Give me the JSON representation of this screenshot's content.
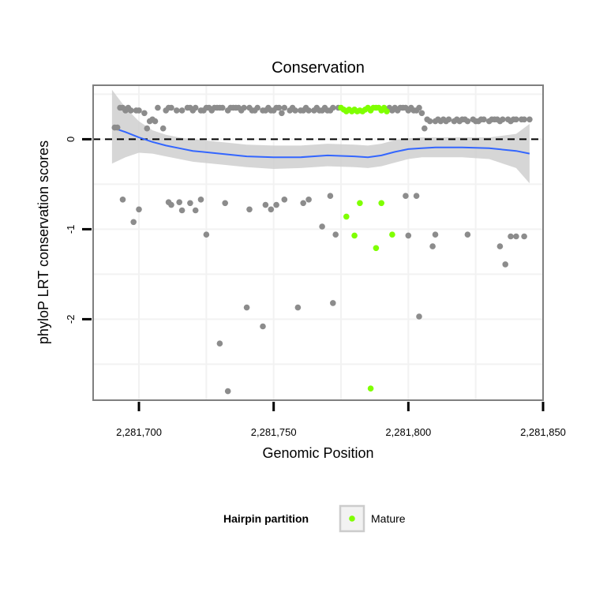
{
  "chart_data": {
    "type": "scatter",
    "title": "Conservation",
    "xlabel": "Genomic Position",
    "ylabel": "phyloP LRT conservation scores",
    "xlim": [
      2281683,
      2281850
    ],
    "ylim": [
      -2.9,
      0.6
    ],
    "x_ticks": [
      2281700,
      2281750,
      2281800,
      2281850
    ],
    "x_tick_labels": [
      "2,281,700",
      "2,281,750",
      "2,281,800",
      "2,281,850"
    ],
    "y_ticks": [
      0,
      -1,
      -2
    ],
    "y_tick_labels": [
      "0",
      "-1",
      "-2"
    ],
    "reference_line": {
      "y": 0,
      "style": "dashed"
    },
    "grid": true,
    "colors": {
      "other": "#8c8c8c",
      "mature": "#7fff00",
      "smooth": "#3366ff",
      "ribbon": "#cccccc",
      "panel_border": "#7f7f7f",
      "grid": "#f2f2f2"
    },
    "legend": {
      "title": "Hairpin partition",
      "position": "bottom",
      "entries": [
        {
          "label": "Mature",
          "color": "#7fff00"
        }
      ]
    },
    "series": [
      {
        "key": "other",
        "points": [
          [
            2281691,
            0.13
          ],
          [
            2281692,
            0.13
          ],
          [
            2281693,
            0.35
          ],
          [
            2281694,
            0.35
          ],
          [
            2281695,
            0.32
          ],
          [
            2281696,
            0.35
          ],
          [
            2281697,
            0.32
          ],
          [
            2281699,
            0.32
          ],
          [
            2281700,
            0.32
          ],
          [
            2281702,
            0.29
          ],
          [
            2281703,
            0.12
          ],
          [
            2281704,
            0.2
          ],
          [
            2281705,
            0.22
          ],
          [
            2281706,
            0.2
          ],
          [
            2281707,
            0.35
          ],
          [
            2281709,
            0.12
          ],
          [
            2281710,
            0.32
          ],
          [
            2281711,
            0.35
          ],
          [
            2281712,
            0.35
          ],
          [
            2281714,
            0.32
          ],
          [
            2281716,
            0.32
          ],
          [
            2281718,
            0.35
          ],
          [
            2281719,
            0.35
          ],
          [
            2281720,
            0.32
          ],
          [
            2281721,
            0.35
          ],
          [
            2281723,
            0.32
          ],
          [
            2281724,
            0.32
          ],
          [
            2281725,
            0.35
          ],
          [
            2281726,
            0.35
          ],
          [
            2281727,
            0.32
          ],
          [
            2281728,
            0.35
          ],
          [
            2281729,
            0.35
          ],
          [
            2281730,
            0.35
          ],
          [
            2281731,
            0.35
          ],
          [
            2281733,
            0.32
          ],
          [
            2281734,
            0.35
          ],
          [
            2281735,
            0.35
          ],
          [
            2281736,
            0.35
          ],
          [
            2281737,
            0.35
          ],
          [
            2281738,
            0.32
          ],
          [
            2281739,
            0.35
          ],
          [
            2281741,
            0.35
          ],
          [
            2281742,
            0.32
          ],
          [
            2281743,
            0.32
          ],
          [
            2281744,
            0.35
          ],
          [
            2281746,
            0.32
          ],
          [
            2281747,
            0.32
          ],
          [
            2281748,
            0.35
          ],
          [
            2281749,
            0.32
          ],
          [
            2281750,
            0.32
          ],
          [
            2281751,
            0.35
          ],
          [
            2281752,
            0.35
          ],
          [
            2281753,
            0.29
          ],
          [
            2281754,
            0.35
          ],
          [
            2281756,
            0.32
          ],
          [
            2281757,
            0.35
          ],
          [
            2281758,
            0.32
          ],
          [
            2281760,
            0.32
          ],
          [
            2281761,
            0.32
          ],
          [
            2281762,
            0.35
          ],
          [
            2281763,
            0.32
          ],
          [
            2281765,
            0.32
          ],
          [
            2281766,
            0.35
          ],
          [
            2281767,
            0.32
          ],
          [
            2281768,
            0.32
          ],
          [
            2281769,
            0.35
          ],
          [
            2281770,
            0.32
          ],
          [
            2281771,
            0.32
          ],
          [
            2281772,
            0.35
          ],
          [
            2281774,
            0.35
          ],
          [
            2281792,
            0.32
          ],
          [
            2281793,
            0.35
          ],
          [
            2281794,
            0.32
          ],
          [
            2281795,
            0.35
          ],
          [
            2281796,
            0.32
          ],
          [
            2281797,
            0.35
          ],
          [
            2281798,
            0.35
          ],
          [
            2281799,
            0.35
          ],
          [
            2281800,
            0.32
          ],
          [
            2281801,
            0.35
          ],
          [
            2281802,
            0.32
          ],
          [
            2281803,
            0.32
          ],
          [
            2281804,
            0.35
          ],
          [
            2281805,
            0.29
          ],
          [
            2281806,
            0.12
          ],
          [
            2281807,
            0.22
          ],
          [
            2281808,
            0.2
          ],
          [
            2281810,
            0.2
          ],
          [
            2281811,
            0.22
          ],
          [
            2281812,
            0.2
          ],
          [
            2281813,
            0.22
          ],
          [
            2281814,
            0.2
          ],
          [
            2281815,
            0.22
          ],
          [
            2281817,
            0.2
          ],
          [
            2281818,
            0.22
          ],
          [
            2281819,
            0.2
          ],
          [
            2281820,
            0.22
          ],
          [
            2281821,
            0.22
          ],
          [
            2281822,
            0.2
          ],
          [
            2281824,
            0.22
          ],
          [
            2281825,
            0.2
          ],
          [
            2281826,
            0.2
          ],
          [
            2281827,
            0.22
          ],
          [
            2281828,
            0.22
          ],
          [
            2281830,
            0.2
          ],
          [
            2281831,
            0.22
          ],
          [
            2281832,
            0.22
          ],
          [
            2281833,
            0.22
          ],
          [
            2281834,
            0.2
          ],
          [
            2281835,
            0.22
          ],
          [
            2281837,
            0.22
          ],
          [
            2281838,
            0.2
          ],
          [
            2281839,
            0.22
          ],
          [
            2281840,
            0.22
          ],
          [
            2281842,
            0.22
          ],
          [
            2281843,
            0.22
          ],
          [
            2281845,
            0.22
          ],
          [
            2281694,
            -0.67
          ],
          [
            2281698,
            -0.92
          ],
          [
            2281700,
            -0.78
          ],
          [
            2281711,
            -0.7
          ],
          [
            2281712,
            -0.73
          ],
          [
            2281715,
            -0.7
          ],
          [
            2281716,
            -0.79
          ],
          [
            2281719,
            -0.71
          ],
          [
            2281721,
            -0.79
          ],
          [
            2281723,
            -0.67
          ],
          [
            2281725,
            -1.06
          ],
          [
            2281730,
            -2.27
          ],
          [
            2281732,
            -0.71
          ],
          [
            2281733,
            -2.8
          ],
          [
            2281740,
            -1.87
          ],
          [
            2281741,
            -0.78
          ],
          [
            2281746,
            -2.08
          ],
          [
            2281747,
            -0.73
          ],
          [
            2281749,
            -0.78
          ],
          [
            2281751,
            -0.73
          ],
          [
            2281754,
            -0.67
          ],
          [
            2281759,
            -1.87
          ],
          [
            2281761,
            -0.71
          ],
          [
            2281763,
            -0.67
          ],
          [
            2281768,
            -0.97
          ],
          [
            2281771,
            -0.63
          ],
          [
            2281772,
            -1.82
          ],
          [
            2281773,
            -1.06
          ],
          [
            2281799,
            -0.63
          ],
          [
            2281800,
            -1.07
          ],
          [
            2281803,
            -0.63
          ],
          [
            2281804,
            -1.97
          ],
          [
            2281809,
            -1.19
          ],
          [
            2281810,
            -1.06
          ],
          [
            2281822,
            -1.06
          ],
          [
            2281834,
            -1.19
          ],
          [
            2281836,
            -1.39
          ],
          [
            2281838,
            -1.08
          ],
          [
            2281840,
            -1.08
          ],
          [
            2281843,
            -1.08
          ]
        ]
      },
      {
        "key": "mature",
        "name": "Mature",
        "points": [
          [
            2281775,
            0.35
          ],
          [
            2281776,
            0.33
          ],
          [
            2281777,
            0.31
          ],
          [
            2281778,
            0.33
          ],
          [
            2281779,
            0.31
          ],
          [
            2281780,
            0.33
          ],
          [
            2281781,
            0.31
          ],
          [
            2281782,
            0.32
          ],
          [
            2281783,
            0.31
          ],
          [
            2281784,
            0.33
          ],
          [
            2281785,
            0.35
          ],
          [
            2281786,
            0.32
          ],
          [
            2281787,
            0.35
          ],
          [
            2281788,
            0.35
          ],
          [
            2281789,
            0.35
          ],
          [
            2281790,
            0.32
          ],
          [
            2281791,
            0.35
          ],
          [
            2281792,
            0.31
          ],
          [
            2281777,
            -0.86
          ],
          [
            2281780,
            -1.07
          ],
          [
            2281782,
            -0.71
          ],
          [
            2281786,
            -2.77
          ],
          [
            2281788,
            -1.21
          ],
          [
            2281790,
            -0.71
          ],
          [
            2281794,
            -1.06
          ]
        ]
      }
    ],
    "smooth": {
      "x": [
        2281690,
        2281695,
        2281700,
        2281705,
        2281710,
        2281715,
        2281720,
        2281730,
        2281740,
        2281750,
        2281760,
        2281770,
        2281780,
        2281785,
        2281790,
        2281795,
        2281800,
        2281805,
        2281810,
        2281820,
        2281830,
        2281840,
        2281845
      ],
      "y": [
        0.13,
        0.08,
        0.02,
        -0.03,
        -0.07,
        -0.1,
        -0.13,
        -0.16,
        -0.19,
        -0.2,
        -0.2,
        -0.18,
        -0.19,
        -0.2,
        -0.18,
        -0.14,
        -0.11,
        -0.1,
        -0.09,
        -0.09,
        -0.1,
        -0.13,
        -0.16
      ],
      "lower": [
        -0.27,
        -0.2,
        -0.15,
        -0.16,
        -0.19,
        -0.22,
        -0.25,
        -0.28,
        -0.31,
        -0.33,
        -0.32,
        -0.3,
        -0.31,
        -0.32,
        -0.3,
        -0.26,
        -0.22,
        -0.2,
        -0.2,
        -0.2,
        -0.22,
        -0.32,
        -0.49
      ],
      "upper": [
        0.55,
        0.35,
        0.2,
        0.1,
        0.05,
        0.02,
        0,
        -0.03,
        -0.06,
        -0.07,
        -0.07,
        -0.05,
        -0.06,
        -0.07,
        -0.05,
        -0.01,
        0.01,
        0.02,
        0.02,
        0.02,
        0.02,
        0.06,
        0.17
      ]
    }
  }
}
